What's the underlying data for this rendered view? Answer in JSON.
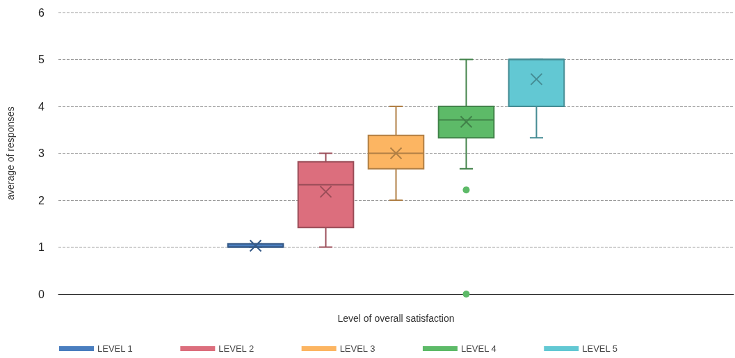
{
  "chart_data": {
    "type": "box",
    "xlabel": "Level of overall satisfaction",
    "ylabel": "average of responses",
    "categories": [
      null
    ],
    "series": [
      {
        "name": "LEVEL 1",
        "color": "#4a7ebf",
        "boxes": [
          {
            "low": 1,
            "q1": 1,
            "median": 1,
            "q3": 1.07,
            "high": 1.07,
            "mean": 1.03
          }
        ]
      },
      {
        "name": "LEVEL 2",
        "color": "#dc6e7d",
        "boxes": [
          {
            "low": 1,
            "q1": 1.42,
            "median": 2.33,
            "q3": 2.82,
            "high": 3,
            "mean": 2.18
          }
        ]
      },
      {
        "name": "LEVEL 3",
        "color": "#fcb562",
        "boxes": [
          {
            "low": 2,
            "q1": 2.67,
            "median": 3,
            "q3": 3.38,
            "high": 4,
            "mean": 3
          }
        ]
      },
      {
        "name": "LEVEL 4",
        "color": "#5dba68",
        "boxes": [
          {
            "low": 2.67,
            "q1": 3.33,
            "median": 3.71,
            "q3": 4,
            "high": 5,
            "mean": 3.67,
            "outliers": [
              2.22,
              0
            ]
          }
        ]
      },
      {
        "name": "LEVEL 5",
        "color": "#62c8d3",
        "boxes": [
          {
            "low": 3.33,
            "q1": 4,
            "median": 5,
            "q3": 5,
            "high": 5,
            "mean": 4.58
          }
        ]
      }
    ],
    "ylim": [
      0,
      6
    ],
    "yticks": [
      0,
      1,
      2,
      3,
      4,
      5,
      6
    ],
    "grid": "y",
    "legend": "bottom"
  }
}
